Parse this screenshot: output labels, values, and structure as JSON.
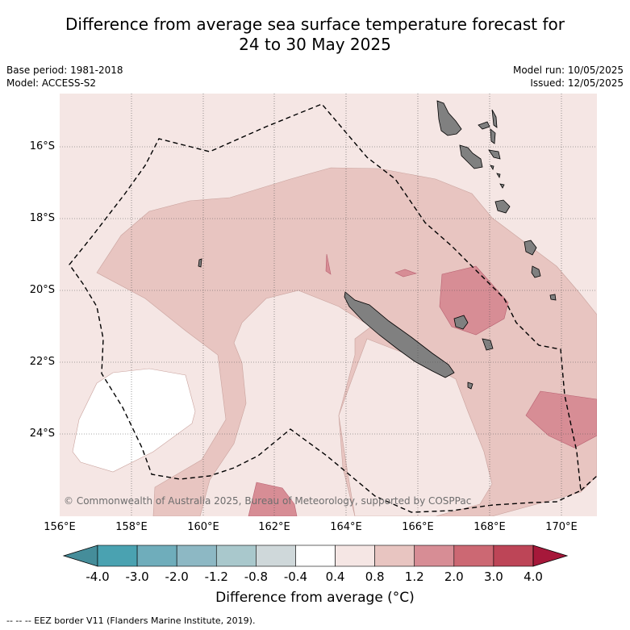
{
  "title_line1": "Difference from average sea surface temperature forecast for",
  "title_line2": "24 to 30 May 2025",
  "meta": {
    "base_period": "Base period: 1981-2018",
    "model": "Model: ACCESS-S2",
    "model_run": "Model run: 10/05/2025",
    "issued": "Issued: 12/05/2025"
  },
  "lat_labels": [
    "16°S",
    "18°S",
    "20°S",
    "22°S",
    "24°S"
  ],
  "lon_labels": [
    "156°E",
    "158°E",
    "160°E",
    "162°E",
    "164°E",
    "166°E",
    "168°E",
    "170°E"
  ],
  "copyright": "© Commonwealth of Australia 2025, Bureau of Meteorology, supported by COSPPac",
  "colorbar": {
    "tick_labels": [
      "-4.0",
      "-3.0",
      "-2.0",
      "-1.2",
      "-0.8",
      "-0.4",
      "0.4",
      "0.8",
      "1.2",
      "2.0",
      "3.0",
      "4.0"
    ],
    "colors": [
      "#458d9a",
      "#4aa2b1",
      "#6fadbb",
      "#8db8c4",
      "#a9c8cc",
      "#cfd8da",
      "#ffffff",
      "#f5e6e4",
      "#e8c5c1",
      "#d78d95",
      "#cc6873",
      "#bd4557",
      "#a6183a"
    ],
    "title": "Difference from average (°C)"
  },
  "legend_note": "-- -- -- EEZ border V11 (Flanders Marine Institute, 2019).",
  "map_colors": {
    "ocean_background": "#f5e6e4",
    "anomaly_0_4_to_0_8": "#f5e6e4",
    "anomaly_0_8_to_1_2": "#e8c5c1",
    "anomaly_1_2_to_2_0": "#d78d95",
    "anomaly_neg0_4_to_0_4": "#ffffff",
    "land": "#808080"
  }
}
